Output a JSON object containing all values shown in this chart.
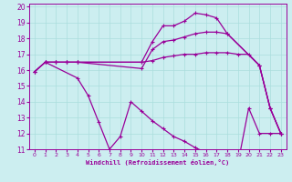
{
  "xlabel": "Windchill (Refroidissement éolien,°C)",
  "xlim": [
    -0.5,
    23.5
  ],
  "ylim": [
    11,
    20.2
  ],
  "xticks": [
    0,
    1,
    2,
    3,
    4,
    5,
    6,
    7,
    8,
    9,
    10,
    11,
    12,
    13,
    14,
    15,
    16,
    17,
    18,
    19,
    20,
    21,
    22,
    23
  ],
  "yticks": [
    11,
    12,
    13,
    14,
    15,
    16,
    17,
    18,
    19,
    20
  ],
  "bg_color": "#cceef0",
  "grid_color": "#aadddd",
  "line_color": "#990099",
  "lines": [
    {
      "x": [
        0,
        1,
        2,
        3,
        4,
        10,
        11,
        12,
        13,
        14,
        15,
        16,
        17,
        18,
        21,
        22,
        23
      ],
      "y": [
        15.9,
        16.5,
        16.5,
        16.5,
        16.5,
        16.5,
        17.8,
        18.8,
        18.8,
        19.1,
        19.6,
        19.5,
        19.3,
        18.3,
        16.3,
        13.6,
        12.0
      ]
    },
    {
      "x": [
        0,
        1,
        2,
        3,
        4,
        10,
        11,
        12,
        13,
        14,
        15,
        16,
        17,
        18,
        21,
        22,
        23
      ],
      "y": [
        15.9,
        16.5,
        16.5,
        16.5,
        16.5,
        16.1,
        17.3,
        17.8,
        17.9,
        18.1,
        18.3,
        18.4,
        18.4,
        18.3,
        16.3,
        13.6,
        12.0
      ]
    },
    {
      "x": [
        0,
        1,
        2,
        3,
        4,
        10,
        11,
        12,
        13,
        14,
        15,
        16,
        17,
        18,
        19,
        20,
        21,
        22,
        23
      ],
      "y": [
        15.9,
        16.5,
        16.5,
        16.5,
        16.5,
        16.5,
        16.6,
        16.8,
        16.9,
        17.0,
        17.0,
        17.1,
        17.1,
        17.1,
        17.0,
        17.0,
        16.3,
        13.6,
        12.0
      ]
    },
    {
      "x": [
        1,
        4,
        5,
        6,
        7,
        8,
        9,
        10,
        11,
        12,
        13,
        14,
        15,
        16,
        17,
        18,
        19,
        20,
        21,
        22,
        23
      ],
      "y": [
        16.5,
        15.5,
        14.4,
        12.7,
        11.0,
        11.8,
        14.0,
        13.4,
        12.8,
        12.3,
        11.8,
        11.5,
        11.1,
        10.8,
        10.5,
        10.3,
        10.1,
        13.6,
        12.0,
        12.0,
        12.0
      ]
    }
  ]
}
